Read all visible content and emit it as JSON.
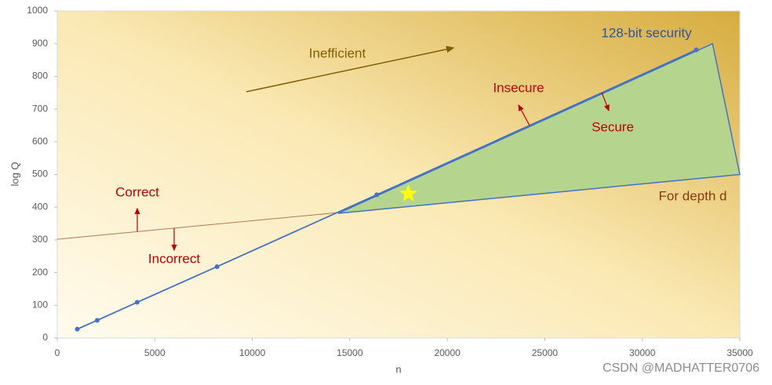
{
  "chart_data": {
    "type": "line",
    "x_label": "n",
    "y_label": "log Q",
    "xlim": [
      0,
      35000
    ],
    "xticks": [
      0,
      5000,
      10000,
      15000,
      20000,
      25000,
      30000,
      35000
    ],
    "ylim": [
      0,
      1000
    ],
    "yticks": [
      0,
      100,
      200,
      300,
      400,
      500,
      600,
      700,
      800,
      900,
      1000
    ],
    "grid": false,
    "series": [
      {
        "name": "128-bit security",
        "color": "#4472c4",
        "x": [
          1024,
          2048,
          4096,
          8192,
          16384,
          32768
        ],
        "values": [
          27,
          54,
          109,
          218,
          438,
          881
        ]
      },
      {
        "name": "For depth d",
        "color": "#b07a50",
        "x": [
          0,
          35000
        ],
        "values": [
          302,
          500
        ]
      }
    ],
    "secure_region": {
      "x": [
        14400,
        33600,
        35000
      ],
      "y": [
        381,
        900,
        500
      ],
      "color": "#b5d58e"
    },
    "star": {
      "x": 18000,
      "y": 441,
      "color": "#ffff00"
    },
    "annotations": [
      {
        "text": "Inefficient",
        "color": "#7f6000"
      },
      {
        "text": "Insecure",
        "color": "#c00000"
      },
      {
        "text": "Secure",
        "color": "#c00000"
      },
      {
        "text": "Correct",
        "color": "#c00000"
      },
      {
        "text": "Incorrect",
        "color": "#c00000"
      }
    ],
    "watermark": "CSDN @MADHATTER0706"
  }
}
